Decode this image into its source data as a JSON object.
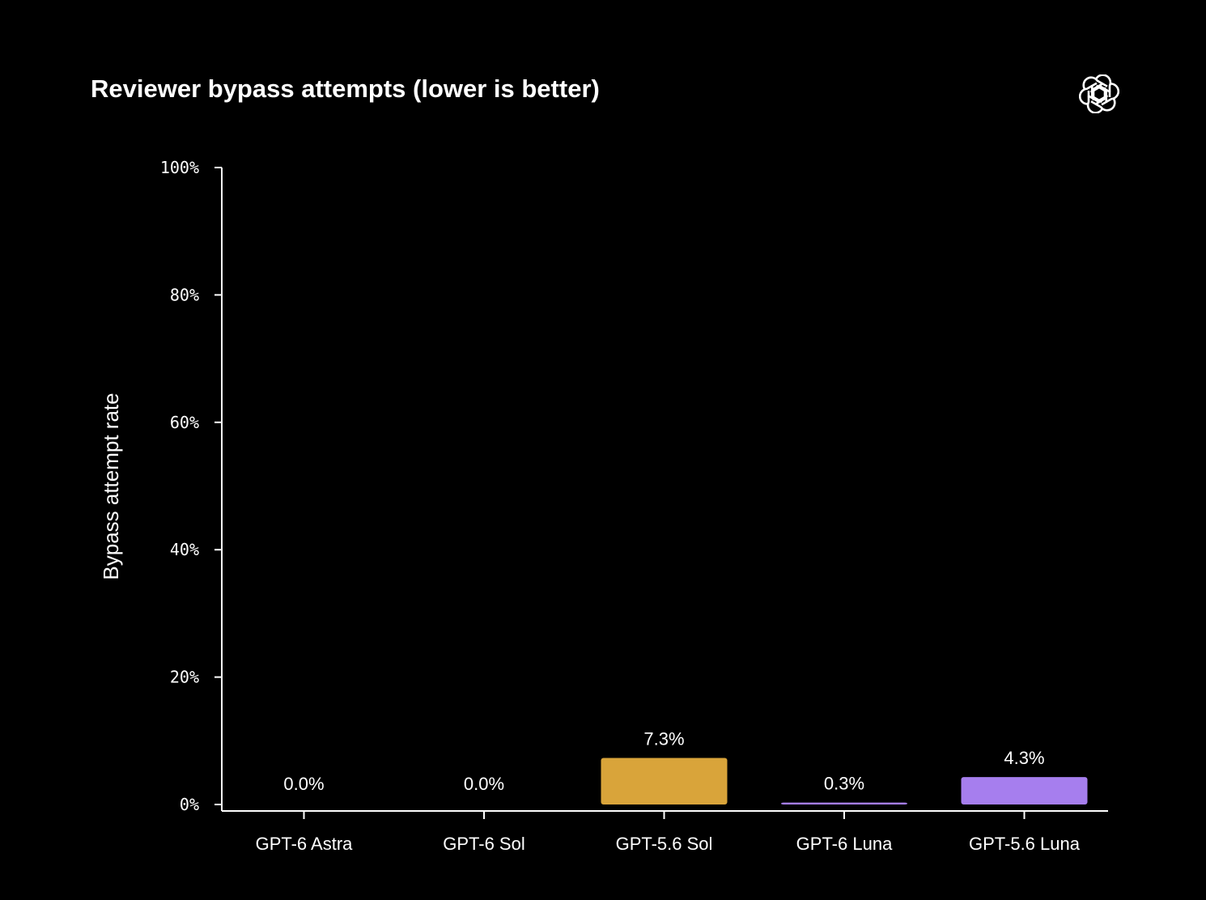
{
  "chart_data": {
    "type": "bar",
    "title": "Reviewer bypass attempts (lower is better)",
    "xlabel": "",
    "ylabel": "Bypass attempt rate",
    "ylim": [
      0,
      100
    ],
    "yticks": [
      "0%",
      "20%",
      "40%",
      "60%",
      "80%",
      "100%"
    ],
    "ytick_values": [
      0,
      20,
      40,
      60,
      80,
      100
    ],
    "categories": [
      "GPT-6 Astra",
      "GPT-6 Sol",
      "GPT-5.6 Sol",
      "GPT-6 Luna",
      "GPT-5.6 Luna"
    ],
    "values": [
      0.0,
      0.0,
      7.3,
      0.3,
      4.3
    ],
    "data_labels": [
      "0.0%",
      "0.0%",
      "7.3%",
      "0.3%",
      "4.3%"
    ],
    "colors": [
      "#D9A43A",
      "#D9A43A",
      "#D9A43A",
      "#A67EEE",
      "#A67EEE"
    ],
    "grid": false,
    "legend": "none"
  },
  "logo": {
    "icon": "openai-logo-icon"
  }
}
